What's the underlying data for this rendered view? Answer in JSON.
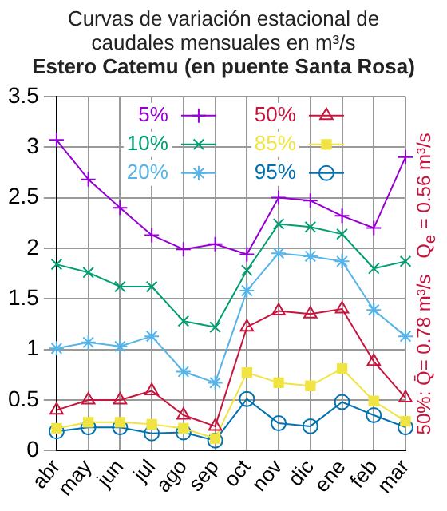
{
  "chart_data": {
    "type": "line",
    "title": "Curvas de variación estacional de caudales mensuales en m³/s",
    "subtitle": "Estero Catemu (en puente Santa Rosa)",
    "categories": [
      "abr",
      "may",
      "jun",
      "jul",
      "ago",
      "sep",
      "oct",
      "nov",
      "dic",
      "ene",
      "feb",
      "mar"
    ],
    "series": [
      {
        "name": "5%",
        "color": "#9400d3",
        "marker": "cross",
        "values": [
          3.07,
          2.68,
          2.4,
          2.13,
          1.99,
          2.04,
          1.94,
          2.5,
          2.47,
          2.32,
          2.2,
          2.9
        ]
      },
      {
        "name": "10%",
        "color": "#009e73",
        "marker": "cross",
        "values": [
          1.84,
          1.76,
          1.62,
          1.62,
          1.28,
          1.22,
          1.78,
          2.24,
          2.21,
          2.14,
          1.8,
          1.87
        ]
      },
      {
        "name": "20%",
        "color": "#56b4e9",
        "marker": "cross",
        "values": [
          1.01,
          1.07,
          1.03,
          1.13,
          0.78,
          0.67,
          1.58,
          1.95,
          1.92,
          1.87,
          1.39,
          1.13
        ]
      },
      {
        "name": "50%",
        "color": "#c8143c",
        "marker": "triangle",
        "values": [
          0.4,
          0.5,
          0.5,
          0.59,
          0.35,
          0.24,
          1.22,
          1.38,
          1.35,
          1.4,
          0.88,
          0.52
        ]
      },
      {
        "name": "85%",
        "color": "#f0e442",
        "marker": "square",
        "values": [
          0.22,
          0.28,
          0.28,
          0.26,
          0.22,
          0.12,
          0.77,
          0.67,
          0.64,
          0.81,
          0.49,
          0.29
        ]
      },
      {
        "name": "95%",
        "color": "#0072b2",
        "marker": "circle",
        "values": [
          0.19,
          0.23,
          0.23,
          0.17,
          0.18,
          0.1,
          0.51,
          0.27,
          0.24,
          0.48,
          0.35,
          0.23
        ]
      }
    ],
    "ylim": [
      0,
      3.5
    ],
    "yticks": [
      0,
      0.5,
      1,
      1.5,
      2,
      2.5,
      3,
      3.5
    ],
    "grid": true,
    "legend": "top",
    "line_style": "solid",
    "annotations": [
      "50%:  Q̄= 0.78 m³/s",
      "Q$_{e}$ = 0.56 m³/s"
    ]
  }
}
